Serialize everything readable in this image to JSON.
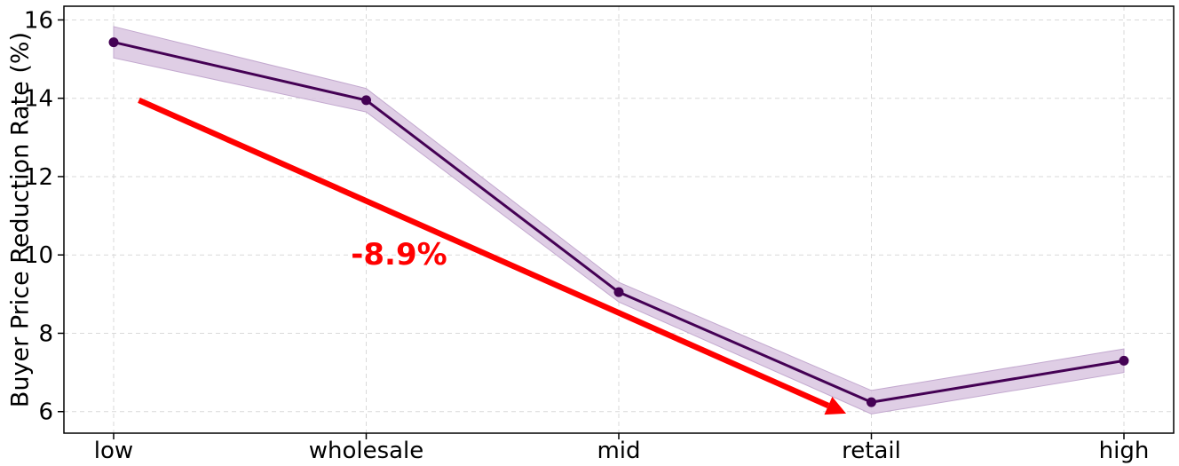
{
  "chart_data": {
    "type": "line",
    "categories": [
      "low",
      "wholesale",
      "mid",
      "retail",
      "high"
    ],
    "series": [
      {
        "values": [
          15.43,
          13.95,
          9.05,
          6.24,
          7.3
        ],
        "lower": [
          15.03,
          13.65,
          8.8,
          5.94,
          7.0
        ],
        "upper": [
          15.83,
          14.25,
          9.3,
          6.54,
          7.6
        ],
        "color": "#440154",
        "band_color": "#d9c6e0"
      }
    ],
    "title": "",
    "xlabel": "",
    "ylabel": "Buyer Price Reduction Rate (%)",
    "ylim": [
      5.45,
      16.35
    ],
    "yticks": [
      6,
      8,
      10,
      12,
      14,
      16
    ],
    "grid": true,
    "annotation": {
      "text": "-8.9%",
      "color": "#ff0000",
      "arrow_from": {
        "x": 0.1,
        "y": 13.95
      },
      "arrow_to": {
        "x": 2.9,
        "y": 5.95
      },
      "text_at": {
        "x": 1.13,
        "y": 9.75
      }
    }
  }
}
